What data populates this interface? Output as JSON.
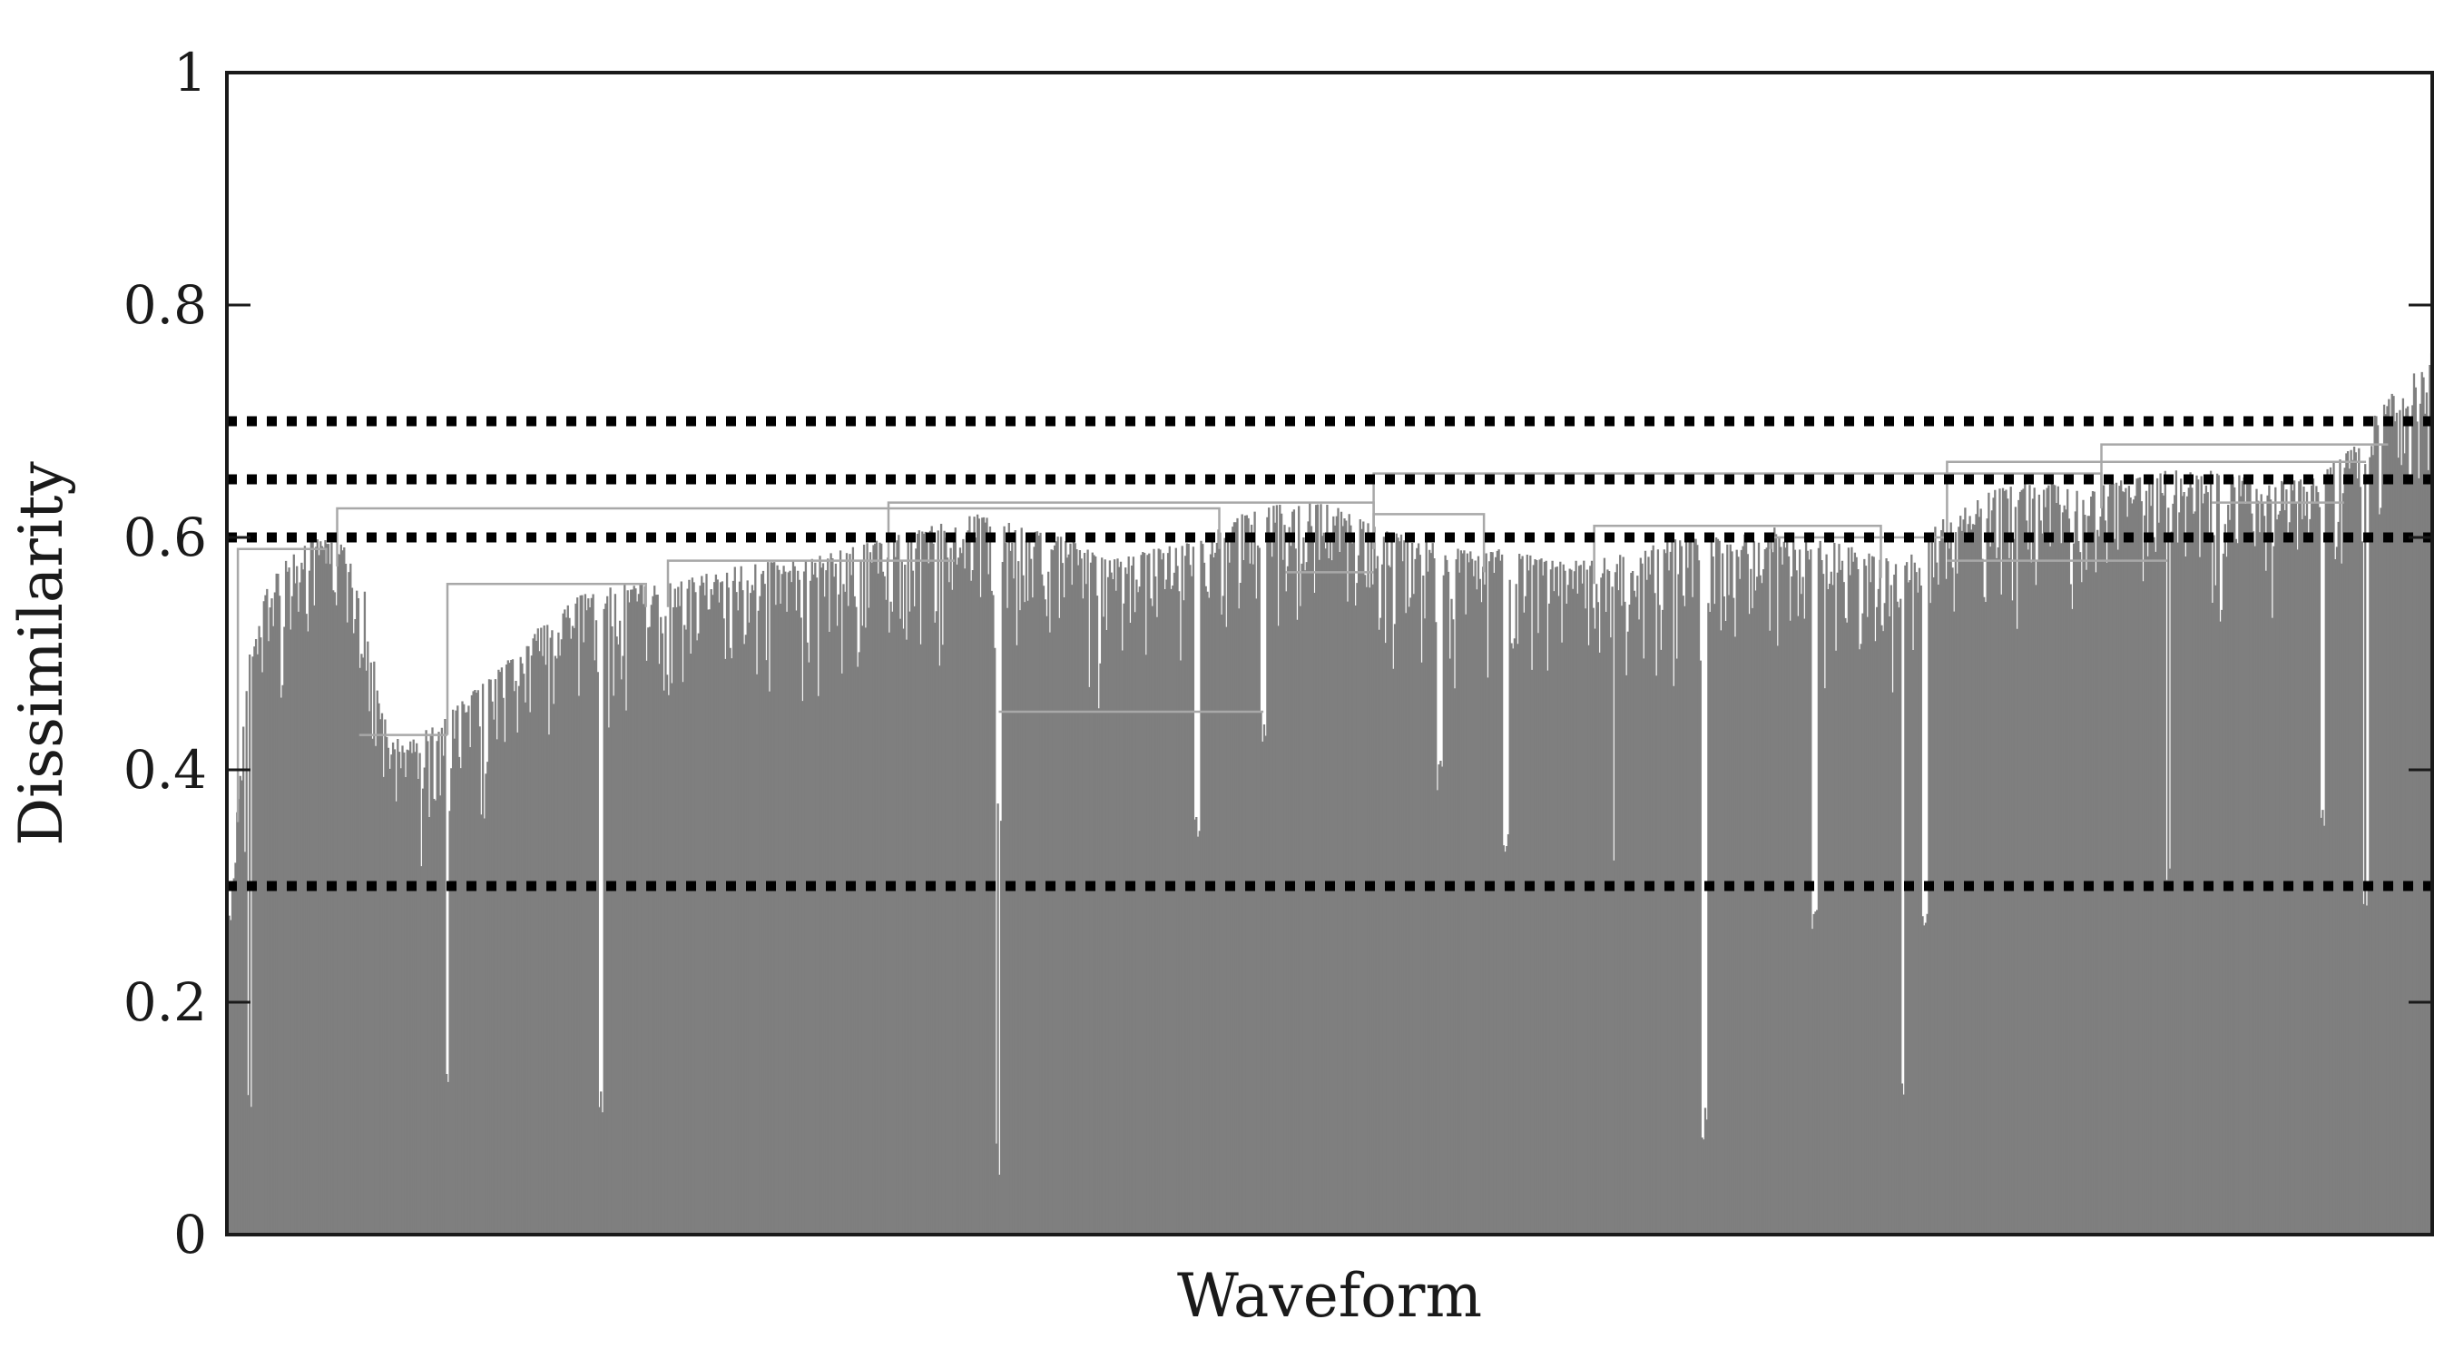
{
  "chart_data": {
    "type": "dendrogram",
    "xlabel": "Waveform",
    "ylabel": "Dissimilarity",
    "ylim": [
      0,
      1
    ],
    "yticks": [
      {
        "value": 0,
        "label": "0"
      },
      {
        "value": 0.2,
        "label": "0.2"
      },
      {
        "value": 0.4,
        "label": "0.4"
      },
      {
        "value": 0.6,
        "label": "0.6"
      },
      {
        "value": 0.8,
        "label": "0.8"
      },
      {
        "value": 1,
        "label": "1"
      }
    ],
    "cut_levels": [
      0.3,
      0.6,
      0.65,
      0.7
    ],
    "cluster_envelope": [
      [
        0.0,
        0.25
      ],
      [
        0.01,
        0.5
      ],
      [
        0.02,
        0.57
      ],
      [
        0.04,
        0.6
      ],
      [
        0.06,
        0.59
      ],
      [
        0.07,
        0.45
      ],
      [
        0.08,
        0.42
      ],
      [
        0.1,
        0.45
      ],
      [
        0.12,
        0.48
      ],
      [
        0.14,
        0.52
      ],
      [
        0.16,
        0.55
      ],
      [
        0.18,
        0.56
      ],
      [
        0.2,
        0.56
      ],
      [
        0.22,
        0.57
      ],
      [
        0.24,
        0.58
      ],
      [
        0.26,
        0.58
      ],
      [
        0.28,
        0.59
      ],
      [
        0.3,
        0.6
      ],
      [
        0.32,
        0.61
      ],
      [
        0.34,
        0.62
      ],
      [
        0.36,
        0.61
      ],
      [
        0.38,
        0.6
      ],
      [
        0.4,
        0.58
      ],
      [
        0.42,
        0.59
      ],
      [
        0.44,
        0.6
      ],
      [
        0.46,
        0.62
      ],
      [
        0.48,
        0.63
      ],
      [
        0.5,
        0.63
      ],
      [
        0.52,
        0.61
      ],
      [
        0.54,
        0.6
      ],
      [
        0.56,
        0.59
      ],
      [
        0.58,
        0.59
      ],
      [
        0.6,
        0.58
      ],
      [
        0.62,
        0.58
      ],
      [
        0.64,
        0.59
      ],
      [
        0.66,
        0.6
      ],
      [
        0.68,
        0.6
      ],
      [
        0.7,
        0.61
      ],
      [
        0.72,
        0.6
      ],
      [
        0.74,
        0.59
      ],
      [
        0.76,
        0.58
      ],
      [
        0.78,
        0.62
      ],
      [
        0.8,
        0.64
      ],
      [
        0.82,
        0.65
      ],
      [
        0.84,
        0.64
      ],
      [
        0.86,
        0.65
      ],
      [
        0.88,
        0.66
      ],
      [
        0.9,
        0.66
      ],
      [
        0.92,
        0.65
      ],
      [
        0.94,
        0.65
      ],
      [
        0.96,
        0.67
      ],
      [
        0.98,
        0.72
      ],
      [
        1.0,
        0.76
      ]
    ],
    "dips": [
      [
        0.01,
        0.1
      ],
      [
        0.1,
        0.12
      ],
      [
        0.17,
        0.1
      ],
      [
        0.35,
        0.35
      ],
      [
        0.35,
        0.05
      ],
      [
        0.44,
        0.33
      ],
      [
        0.47,
        0.42
      ],
      [
        0.55,
        0.38
      ],
      [
        0.58,
        0.32
      ],
      [
        0.63,
        0.32
      ],
      [
        0.67,
        0.08
      ],
      [
        0.72,
        0.25
      ],
      [
        0.76,
        0.12
      ],
      [
        0.77,
        0.25
      ],
      [
        0.88,
        0.3
      ],
      [
        0.95,
        0.35
      ],
      [
        0.97,
        0.28
      ]
    ],
    "merge_links": [
      {
        "x_start": 0.05,
        "x_end": 0.45,
        "height": 0.625
      },
      {
        "x_start": 0.3,
        "x_end": 0.52,
        "height": 0.63
      },
      {
        "x_start": 0.52,
        "x_end": 0.85,
        "height": 0.655
      },
      {
        "x_start": 0.78,
        "x_end": 0.97,
        "height": 0.665
      },
      {
        "x_start": 0.85,
        "x_end": 0.98,
        "height": 0.68
      },
      {
        "x_start": 0.005,
        "x_end": 0.045,
        "height": 0.59
      },
      {
        "x_start": 0.06,
        "x_end": 0.1,
        "height": 0.43
      },
      {
        "x_start": 0.1,
        "x_end": 0.19,
        "height": 0.56
      },
      {
        "x_start": 0.2,
        "x_end": 0.33,
        "height": 0.58
      },
      {
        "x_start": 0.35,
        "x_end": 0.47,
        "height": 0.45
      },
      {
        "x_start": 0.48,
        "x_end": 0.52,
        "height": 0.57
      },
      {
        "x_start": 0.52,
        "x_end": 0.57,
        "height": 0.62
      },
      {
        "x_start": 0.62,
        "x_end": 0.75,
        "height": 0.61
      },
      {
        "x_start": 0.7,
        "x_end": 0.78,
        "height": 0.6
      },
      {
        "x_start": 0.78,
        "x_end": 0.88,
        "height": 0.58
      },
      {
        "x_start": 0.9,
        "x_end": 0.96,
        "height": 0.63
      }
    ],
    "colors": {
      "mass": "#7f7f7f",
      "link": "#a8a8a8",
      "cut_line": "#000000",
      "frame": "#1a1a1a"
    }
  }
}
